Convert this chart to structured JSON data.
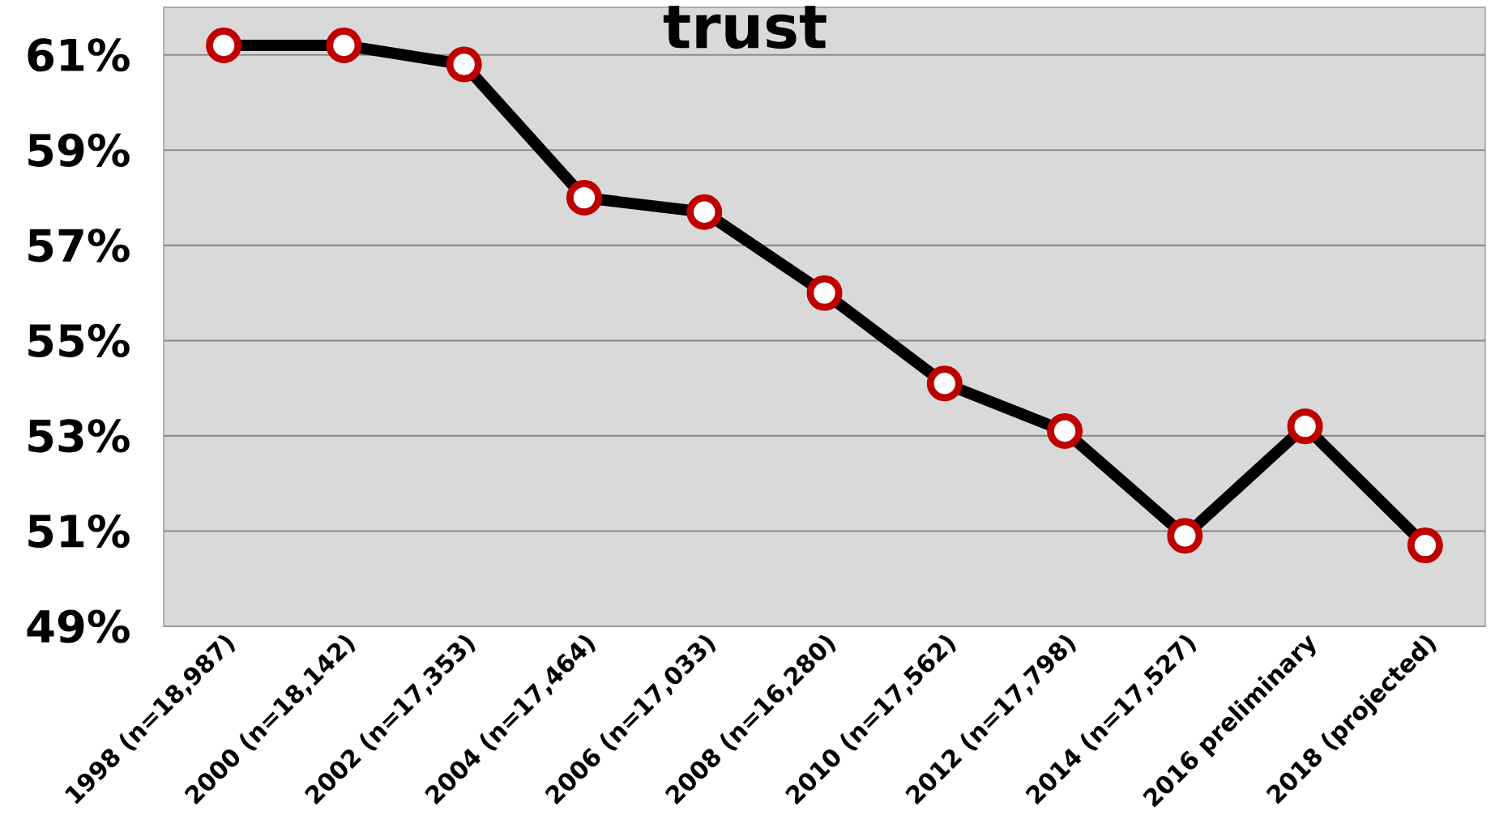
{
  "chart_data": {
    "type": "line",
    "title": "trust",
    "categories": [
      "1998 (n=18,987)",
      "2000 (n=18,142)",
      "2002 (n=17,353)",
      "2004 (n=17,464)",
      "2006 (n=17,033)",
      "2008 (n=16,280)",
      "2010 (n=17,562)",
      "2012 (n=17,798)",
      "2014 (n=17,527)",
      "2016 preliminary",
      "2018 (projected)"
    ],
    "series": [
      {
        "color": "#000000",
        "values": [
          61.2,
          61.2,
          60.8,
          58.0,
          57.7,
          56.0,
          54.1,
          53.1,
          50.9,
          53.2,
          50.7
        ]
      }
    ],
    "ylim": [
      49,
      62
    ],
    "yticks": [
      {
        "value": 49,
        "label": "49%"
      },
      {
        "value": 51,
        "label": "51%"
      },
      {
        "value": 53,
        "label": "53%"
      },
      {
        "value": 55,
        "label": "55%"
      },
      {
        "value": 57,
        "label": "57%"
      },
      {
        "value": 59,
        "label": "59%"
      },
      {
        "value": 61,
        "label": "61%"
      }
    ],
    "grid": "y",
    "marker": "circle",
    "line_style": "solid"
  }
}
